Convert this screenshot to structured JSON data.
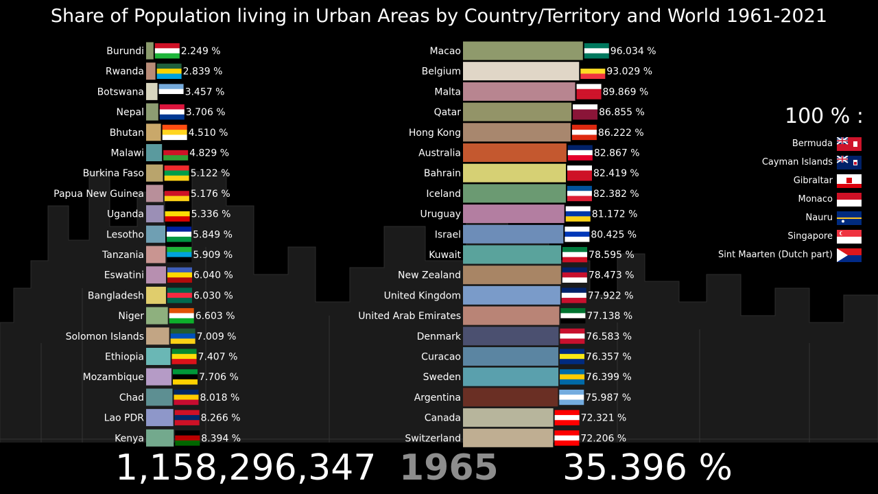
{
  "title": "Share of Population living in Urban Areas by Country/Territory and World 1961-2021",
  "bottom": {
    "urban_population": "1,158,296,347",
    "year": "1965",
    "world_share": "35.396 %"
  },
  "hundred_percent": {
    "heading": "100 % :",
    "items": [
      {
        "name": "Bermuda",
        "flag": "bermuda-flag"
      },
      {
        "name": "Cayman Islands",
        "flag": "cayman-islands-flag"
      },
      {
        "name": "Gibraltar",
        "flag": "gibraltar-flag"
      },
      {
        "name": "Monaco",
        "flag": "monaco-flag"
      },
      {
        "name": "Nauru",
        "flag": "nauru-flag"
      },
      {
        "name": "Singapore",
        "flag": "singapore-flag"
      },
      {
        "name": "Sint Maarten (Dutch part)",
        "flag": "sint-maarten-flag"
      }
    ]
  },
  "chart_data": [
    {
      "type": "bar",
      "orientation": "horizontal",
      "unit": "%",
      "categories": [
        "Burundi",
        "Rwanda",
        "Botswana",
        "Nepal",
        "Bhutan",
        "Malawi",
        "Burkina Faso",
        "Papua New Guinea",
        "Uganda",
        "Lesotho",
        "Tanzania",
        "Eswatini",
        "Bangladesh",
        "Niger",
        "Solomon Islands",
        "Ethiopia",
        "Mozambique",
        "Chad",
        "Lao PDR",
        "Kenya"
      ],
      "values": [
        2.249,
        2.839,
        3.457,
        3.706,
        4.51,
        4.829,
        5.122,
        5.176,
        5.336,
        5.849,
        5.909,
        6.04,
        6.03,
        6.603,
        7.009,
        7.407,
        7.706,
        8.018,
        8.266,
        8.394
      ],
      "labels": [
        "2.249 %",
        "2.839 %",
        "3.457 %",
        "3.706 %",
        "4.510 %",
        "4.829 %",
        "5.122 %",
        "5.176 %",
        "5.336 %",
        "5.849 %",
        "5.909 %",
        "6.040 %",
        "6.030 %",
        "6.603 %",
        "7.009 %",
        "7.407 %",
        "7.706 %",
        "8.018 %",
        "8.266 %",
        "8.394 %"
      ],
      "colors": [
        "#8a9a6c",
        "#b98c78",
        "#d8d6bf",
        "#8d9d72",
        "#c9a86a",
        "#5a9a9e",
        "#b9a46c",
        "#b88f9a",
        "#9b8fb6",
        "#6f9fb3",
        "#c99591",
        "#b78fb0",
        "#e0cd6c",
        "#8eb07e",
        "#c2a584",
        "#6ab7b5",
        "#b59bc6",
        "#5d8f92",
        "#8e97c9",
        "#73a98d"
      ]
    },
    {
      "type": "bar",
      "orientation": "horizontal",
      "unit": "%",
      "categories": [
        "Macao",
        "Belgium",
        "Malta",
        "Qatar",
        "Hong Kong",
        "Australia",
        "Bahrain",
        "Iceland",
        "Uruguay",
        "Israel",
        "Kuwait",
        "New Zealand",
        "United Kingdom",
        "United Arab Emirates",
        "Denmark",
        "Curacao",
        "Sweden",
        "Argentina",
        "Canada",
        "Switzerland"
      ],
      "values": [
        96.034,
        93.029,
        89.869,
        86.855,
        86.222,
        82.867,
        82.419,
        82.382,
        81.172,
        80.425,
        78.595,
        78.473,
        77.922,
        77.138,
        76.583,
        76.357,
        76.399,
        75.987,
        72.321,
        72.206
      ],
      "labels": [
        "96.034 %",
        "93.029 %",
        "89.869 %",
        "86.855 %",
        "86.222 %",
        "82.867 %",
        "82.419 %",
        "82.382 %",
        "81.172 %",
        "80.425 %",
        "78.595 %",
        "78.473 %",
        "77.922 %",
        "77.138 %",
        "76.583 %",
        "76.357 %",
        "76.399 %",
        "75.987 %",
        "72.321 %",
        "72.206 %"
      ],
      "colors": [
        "#8f9a6c",
        "#e0d6c7",
        "#b88590",
        "#939468",
        "#a8876e",
        "#c4582f",
        "#d6d074",
        "#6b9a72",
        "#b37ea1",
        "#6d8db8",
        "#5aa39c",
        "#a88565",
        "#7a9bc9",
        "#b98476",
        "#4b5070",
        "#5b85a2",
        "#5aa0ad",
        "#6a2f24",
        "#b7b59c",
        "#bfae92"
      ]
    }
  ]
}
